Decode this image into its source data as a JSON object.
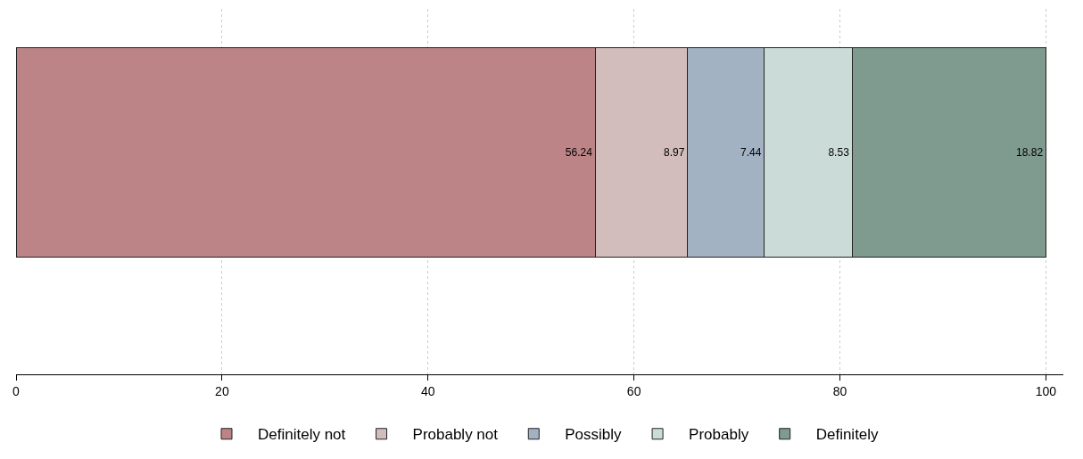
{
  "chart_data": {
    "type": "bar",
    "orientation": "horizontal",
    "stacked": true,
    "categories": [
      null
    ],
    "series": [
      {
        "name": "Definitely not",
        "color": "#bc8486",
        "values": [
          56.24
        ]
      },
      {
        "name": "Probably not",
        "color": "#d3bcbc",
        "values": [
          8.97
        ]
      },
      {
        "name": "Possibly",
        "color": "#a3b2c3",
        "values": [
          7.44
        ]
      },
      {
        "name": "Probably",
        "color": "#cbdcd8",
        "values": [
          8.53
        ]
      },
      {
        "name": "Definitely",
        "color": "#7f9a8f",
        "values": [
          18.82
        ]
      }
    ],
    "xlim": [
      0,
      101.7
    ],
    "xticks": [
      0,
      20,
      40,
      60,
      80,
      100
    ],
    "grid": "x",
    "legend": "bottom",
    "data_labels": true
  }
}
